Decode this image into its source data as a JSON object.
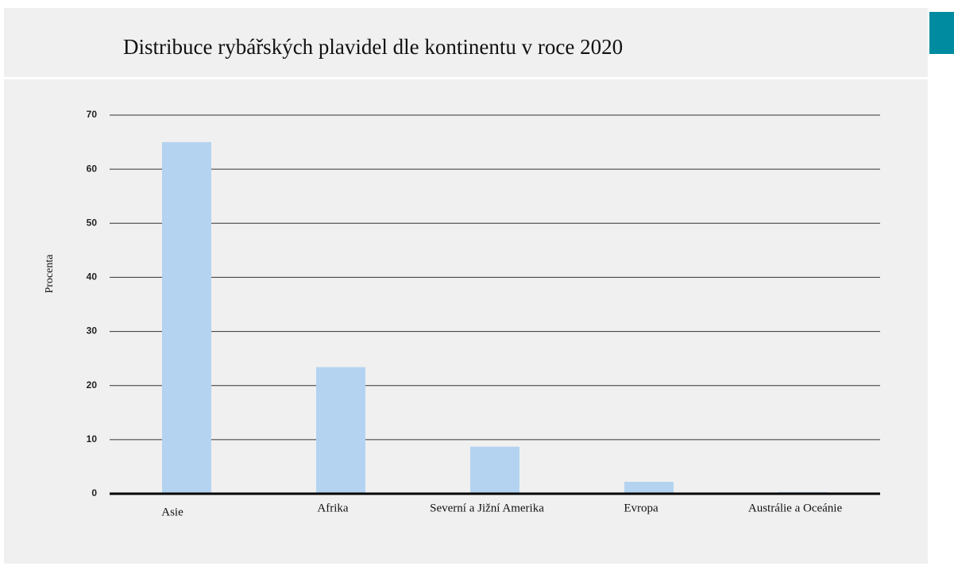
{
  "chart_data": {
    "type": "bar",
    "title": "Distribuce rybářských plavidel dle kontinentu v roce 2020",
    "y_label": "Procenta",
    "categories": [
      "Asie",
      "Afrika",
      "Severní a Jižní Amerika",
      "Evropa",
      "Austrálie a Oceánie"
    ],
    "values": [
      65,
      23.4,
      8.7,
      2.2,
      0.3
    ],
    "color": "#b4d3f0",
    "ylim": [
      0,
      70
    ],
    "yticks": [
      0,
      10,
      20,
      30,
      40,
      50,
      60,
      70
    ],
    "grid": true
  }
}
